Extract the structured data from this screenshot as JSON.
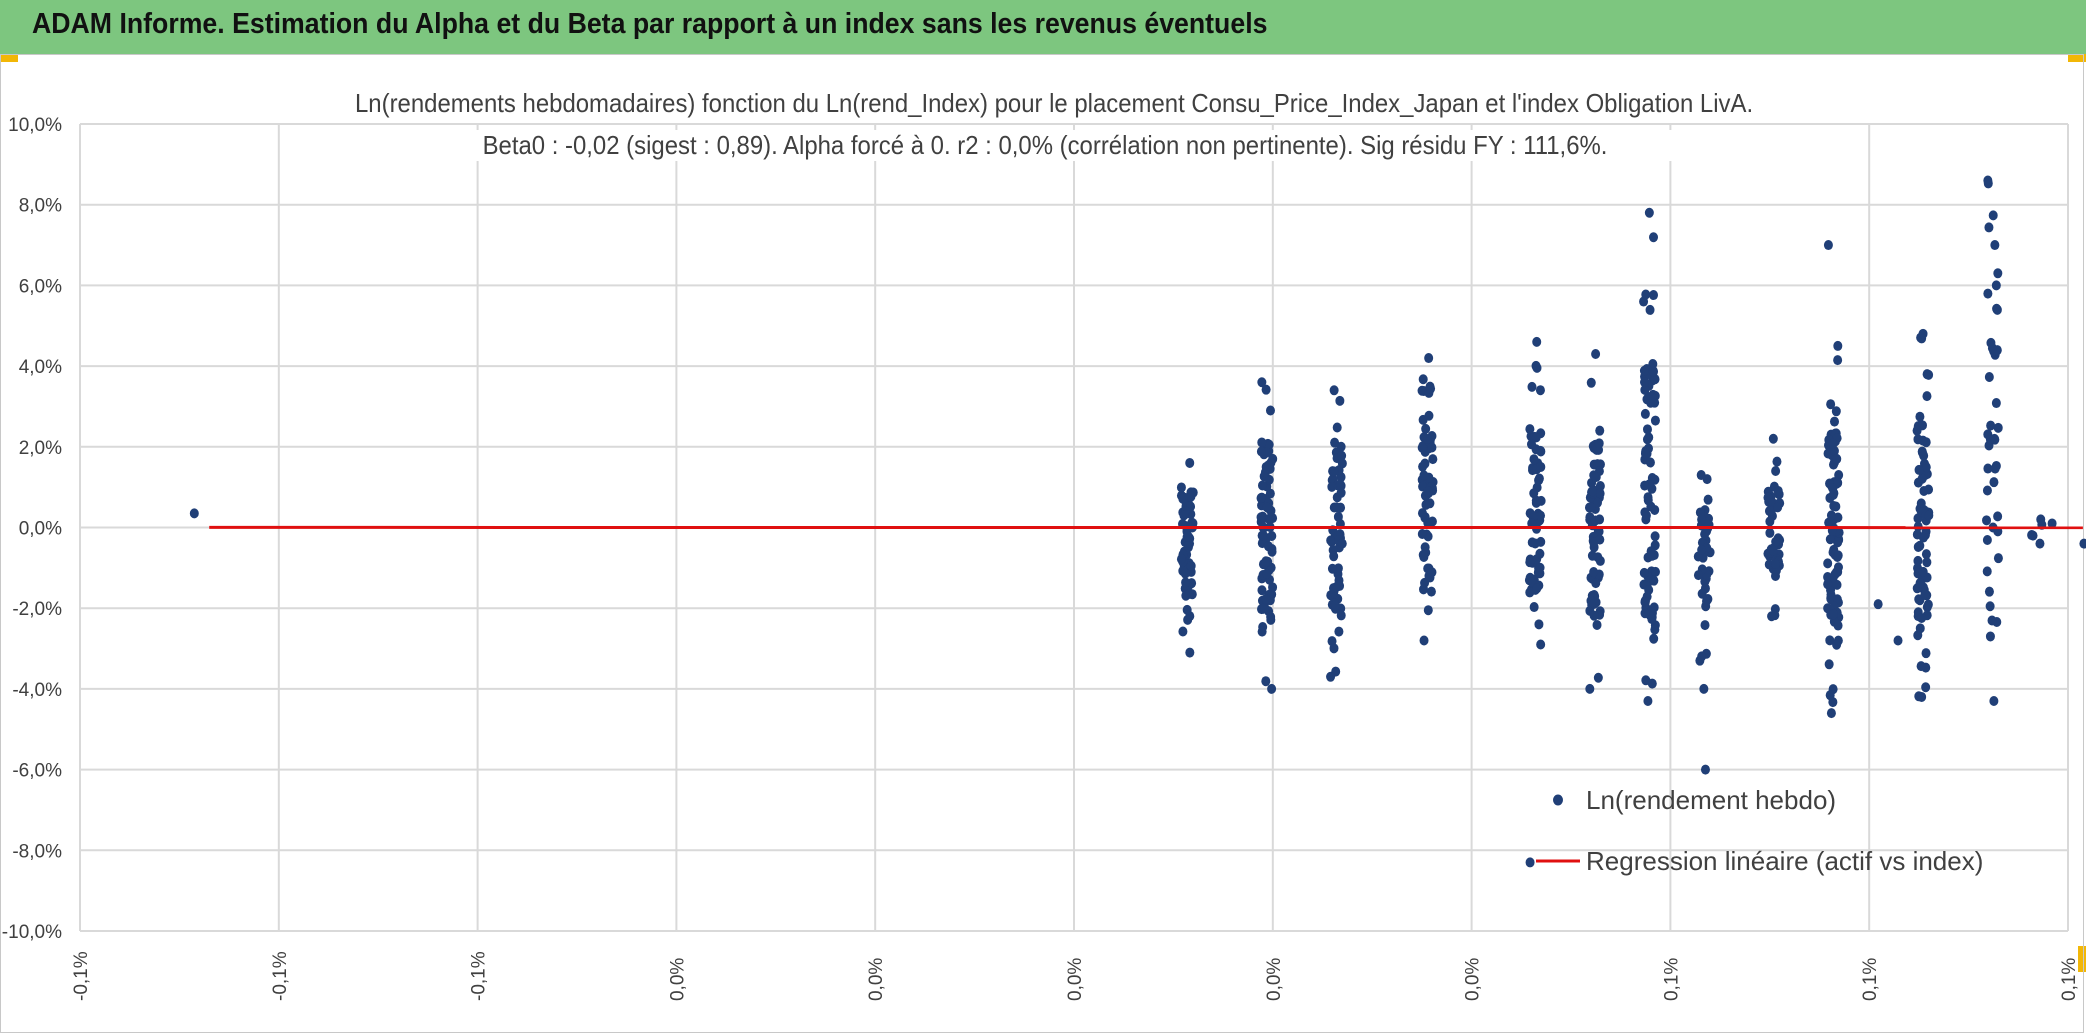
{
  "header": {
    "title": "ADAM Informe. Estimation du Alpha et du Beta par rapport à un index sans les revenus éventuels",
    "background": "#7dc67f",
    "corner_color": "#f2b707"
  },
  "chart_data": {
    "type": "scatter",
    "title_lines": [
      "Ln(rendements hebdomadaires) fonction du Ln(rend_Index) pour le placement Consu_Price_Index_Japan et l'index Obligation LivA.",
      "Beta0 : -0,02 (sigest : 0,89). Alpha forcé à 0. r2 : 0,0% (corrélation non pertinente). Sig résidu FY : 111,6%."
    ],
    "xlabel": "",
    "ylabel": "",
    "xlim": [
      -0.1,
      0.1
    ],
    "ylim": [
      -10,
      10
    ],
    "x_tick_labels": [
      "-0,1%",
      "-0,1%",
      "-0,1%",
      "0,0%",
      "0,0%",
      "0,0%",
      "0,0%",
      "0,0%",
      "0,1%",
      "0,1%",
      "0,1%"
    ],
    "y_tick_labels": [
      "10,0%",
      "8,0%",
      "6,0%",
      "4,0%",
      "2,0%",
      "0,0%",
      "-2,0%",
      "-4,0%",
      "-6,0%",
      "-8,0%",
      "-10,0%"
    ],
    "grid": true,
    "legend_position": "bottom-right",
    "series": [
      {
        "name": "Ln(rendement hebdo)",
        "kind": "scatter",
        "color": "#203f77",
        "columns": [
          {
            "x": 0.0114,
            "min": -3.1,
            "max": 1.6,
            "n": 55,
            "extra": [
              0.4,
              0.3,
              -0.1,
              0.0
            ]
          },
          {
            "x": 0.0194,
            "min": -4.0,
            "max": 3.6,
            "n": 75,
            "extra": [
              0.5,
              -0.6,
              2.9,
              0.0
            ]
          },
          {
            "x": 0.0264,
            "min": -3.7,
            "max": 3.4,
            "n": 60,
            "extra": [
              0.5,
              -0.4,
              2.0
            ]
          },
          {
            "x": 0.0356,
            "min": -2.8,
            "max": 4.2,
            "n": 60,
            "extra": [
              0.1,
              0.6
            ]
          },
          {
            "x": 0.0464,
            "min": -2.9,
            "max": 4.6,
            "n": 55,
            "extra": [
              -8.3,
              -2.4,
              1.9
            ]
          },
          {
            "x": 0.0524,
            "min": -4.0,
            "max": 4.3,
            "n": 60,
            "extra": [
              0.2,
              -0.3,
              0.9,
              2.4
            ]
          },
          {
            "x": 0.0579,
            "min": -4.3,
            "max": 7.8,
            "n": 80,
            "extra": [
              5.6,
              -0.7,
              0.3
            ]
          },
          {
            "x": 0.0634,
            "min": -3.3,
            "max": 1.2,
            "n": 35,
            "extra": [
              -6.0,
              -4.0,
              1.3
            ]
          },
          {
            "x": 0.0704,
            "min": -2.2,
            "max": 2.2,
            "n": 40,
            "extra": [
              0.5,
              1.4,
              -0.9
            ]
          },
          {
            "x": 0.0764,
            "min": -4.6,
            "max": 4.5,
            "n": 85,
            "extra": [
              7.0,
              1.7,
              0.3
            ]
          },
          {
            "x": 0.0854,
            "min": -4.2,
            "max": 4.8,
            "n": 70,
            "extra": [
              0.3,
              -1.1,
              2.4
            ]
          },
          {
            "x": 0.0924,
            "min": -4.3,
            "max": 8.6,
            "n": 35,
            "extra": [
              7.0,
              6.3,
              6.0,
              0.0,
              -2.7
            ]
          },
          {
            "x": 0.0969,
            "min": -0.4,
            "max": 0.2,
            "n": 3,
            "extra": []
          }
        ],
        "outliers": [
          {
            "x": -0.0885,
            "y": 0.35
          },
          {
            "x": 0.0984,
            "y": 0.1
          },
          {
            "x": 0.1016,
            "y": -0.4
          },
          {
            "x": 0.0829,
            "y": -2.8
          },
          {
            "x": 0.0809,
            "y": -1.9
          }
        ]
      },
      {
        "name": "Regression linéaire (actif vs index)",
        "kind": "line",
        "color": "#e01010",
        "x": [
          -0.087,
          0.1015
        ],
        "y": [
          0.002,
          -0.002
        ]
      }
    ]
  }
}
